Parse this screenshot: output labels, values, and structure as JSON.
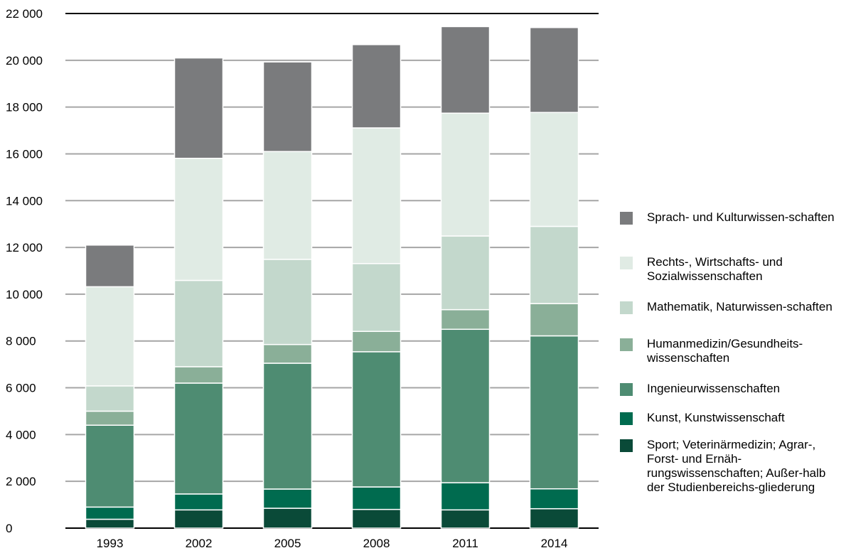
{
  "chart_data": {
    "type": "bar",
    "stacked": true,
    "categories": [
      "1993",
      "2002",
      "2005",
      "2008",
      "2011",
      "2014"
    ],
    "ylim": [
      0,
      22000
    ],
    "yticks": [
      0,
      2000,
      4000,
      6000,
      8000,
      10000,
      12000,
      14000,
      16000,
      18000,
      20000,
      22000
    ],
    "ytick_labels": [
      "0",
      "2 000",
      "4 000",
      "6 000",
      "8 000",
      "10 000",
      "12 000",
      "14 000",
      "16 000",
      "18 000",
      "20 000",
      "22 000"
    ],
    "grid": true,
    "legend_position": "right",
    "series": [
      {
        "name": "Sport; Veterinärmedizin; Agrar-, Forst- und Ernährungswissenschaften; Außerhalb der Studienbereichsgliederung",
        "legend_label": "Sport; Veterinärmedizin; Agrar-, Forst- und Ernäh-rungswissenschaften; Außer-halb der Studienbereichs-gliederung",
        "color": "#0a4a38",
        "values": [
          380,
          780,
          850,
          800,
          780,
          830
        ]
      },
      {
        "name": "Kunst, Kunstwissenschaft",
        "legend_label": "Kunst, Kunstwissenschaft",
        "color": "#006b4f",
        "values": [
          520,
          680,
          820,
          960,
          1160,
          850
        ]
      },
      {
        "name": "Ingenieurwissenschaften",
        "legend_label": "Ingenieurwissenschaften",
        "color": "#4e8c72",
        "values": [
          3500,
          4740,
          5380,
          5780,
          6560,
          6540
        ]
      },
      {
        "name": "Humanmedizin/Gesundheitswissenschaften",
        "legend_label": "Humanmedizin/Gesundheits-wissenschaften",
        "color": "#8aaf98",
        "values": [
          600,
          700,
          800,
          870,
          840,
          1380
        ]
      },
      {
        "name": "Mathematik, Naturwissenschaften",
        "legend_label": "Mathematik, Naturwissen-schaften",
        "color": "#c3d8cc",
        "values": [
          1080,
          3690,
          3640,
          2900,
          3150,
          3300
        ]
      },
      {
        "name": "Rechts-, Wirtschafts- und Sozialwissenschaften",
        "legend_label": "Rechts-, Wirtschafts- und Sozialwissenschaften",
        "color": "#e0ebe4",
        "values": [
          4240,
          5220,
          4610,
          5800,
          5250,
          4870
        ]
      },
      {
        "name": "Sprach- und Kulturwissenschaften",
        "legend_label": "Sprach- und Kulturwissen-schaften",
        "color": "#7a7b7d",
        "values": [
          1780,
          4290,
          3830,
          3560,
          3700,
          3630
        ]
      }
    ]
  }
}
